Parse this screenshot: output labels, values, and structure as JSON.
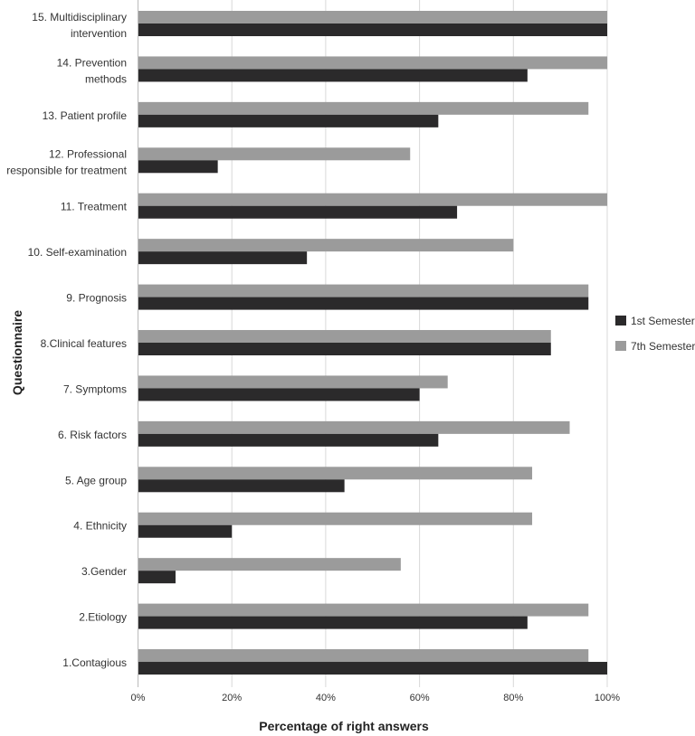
{
  "chart_data": {
    "type": "bar",
    "orientation": "horizontal",
    "xlabel": "Percentage of right answers",
    "ylabel": "Questionnaire",
    "xlim": [
      0,
      100
    ],
    "x_ticks": [
      "0%",
      "20%",
      "40%",
      "60%",
      "80%",
      "100%"
    ],
    "grid": true,
    "legend_position": "right",
    "categories": [
      [
        "1.Contagious"
      ],
      [
        "2.Etiology"
      ],
      [
        "3.Gender"
      ],
      [
        "4. Ethnicity"
      ],
      [
        "5. Age group"
      ],
      [
        "6. Risk factors"
      ],
      [
        "7. Symptoms"
      ],
      [
        "8.Clinical features"
      ],
      [
        "9. Prognosis"
      ],
      [
        "10. Self-examination"
      ],
      [
        "11. Treatment"
      ],
      [
        "12. Professional",
        "responsible for  treatment"
      ],
      [
        "13. Patient profile"
      ],
      [
        "14. Prevention",
        "methods"
      ],
      [
        "15. Multidisciplinary",
        "intervention"
      ]
    ],
    "series": [
      {
        "name": "1st  Semester",
        "color": "#2b2a2b",
        "values": [
          100,
          83,
          8,
          20,
          44,
          64,
          60,
          88,
          96,
          36,
          68,
          17,
          64,
          83,
          100
        ]
      },
      {
        "name": "7th  Semester",
        "color": "#9b9b9b",
        "values": [
          96,
          96,
          56,
          84,
          84,
          92,
          66,
          88,
          96,
          80,
          100,
          58,
          96,
          100,
          100
        ]
      }
    ]
  }
}
